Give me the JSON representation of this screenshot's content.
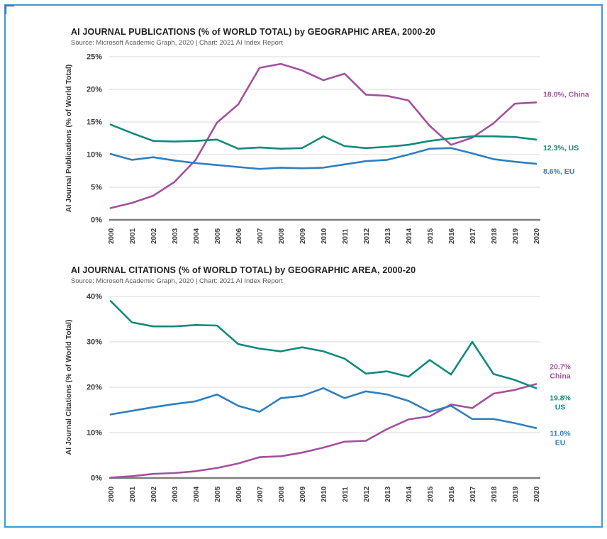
{
  "page": {
    "background": "#ffffff",
    "border_color": "#3b9ad2"
  },
  "chart_data": [
    {
      "type": "line",
      "title": "AI JOURNAL PUBLICATIONS (% of WORLD TOTAL) by GEOGRAPHIC AREA, 2000-20",
      "subtitle": "Source: Microsoft Academic Graph, 2020 | Chart: 2021 AI Index Report",
      "ylabel": "AI Journal Publications (% of World Total)",
      "xlabel": "",
      "ylim": [
        0,
        25
      ],
      "yticks": [
        0,
        5,
        10,
        15,
        20,
        25
      ],
      "ytick_labels": [
        "0%",
        "5%",
        "10%",
        "15%",
        "20%",
        "25%"
      ],
      "grid": true,
      "legend_position": "line-end-labels",
      "x": [
        2000,
        2001,
        2002,
        2003,
        2004,
        2005,
        2006,
        2007,
        2008,
        2009,
        2010,
        2011,
        2012,
        2013,
        2014,
        2015,
        2016,
        2017,
        2018,
        2019,
        2020
      ],
      "series": [
        {
          "name": "China",
          "color": "#a4509e",
          "end_label": "18.0%, China",
          "values": [
            1.8,
            2.6,
            3.7,
            5.8,
            9.2,
            14.9,
            17.7,
            23.3,
            23.9,
            22.9,
            21.4,
            22.4,
            19.2,
            19.0,
            18.3,
            14.4,
            11.5,
            12.6,
            14.8,
            17.8,
            18.0
          ]
        },
        {
          "name": "US",
          "color": "#12897e",
          "end_label": "12.3%, US",
          "values": [
            14.6,
            13.3,
            12.1,
            12.0,
            12.1,
            12.3,
            10.9,
            11.1,
            10.9,
            11.0,
            12.8,
            11.3,
            11.0,
            11.2,
            11.5,
            12.1,
            12.5,
            12.8,
            12.8,
            12.7,
            12.3
          ]
        },
        {
          "name": "EU",
          "color": "#2e7fc1",
          "end_label": "8.6%, EU",
          "values": [
            10.1,
            9.2,
            9.6,
            9.1,
            8.7,
            8.4,
            8.1,
            7.8,
            8.0,
            7.9,
            8.0,
            8.5,
            9.0,
            9.2,
            10.0,
            10.9,
            11.0,
            10.2,
            9.3,
            8.9,
            8.6
          ]
        }
      ]
    },
    {
      "type": "line",
      "title": "AI JOURNAL CITATIONS (% of WORLD TOTAL) by GEOGRAPHIC AREA, 2000-20",
      "subtitle": "Source: Microsoft Academic Graph, 2020 | Chart: 2021 AI Index Report",
      "ylabel": "AI Journal Citations (% of World Total)",
      "xlabel": "",
      "ylim": [
        0,
        40
      ],
      "yticks": [
        0,
        10,
        20,
        30,
        40
      ],
      "ytick_labels": [
        "0%",
        "10%",
        "20%",
        "30%",
        "40%"
      ],
      "grid": true,
      "legend_position": "line-end-labels",
      "x": [
        2000,
        2001,
        2002,
        2003,
        2004,
        2005,
        2006,
        2007,
        2008,
        2009,
        2010,
        2011,
        2012,
        2013,
        2014,
        2015,
        2016,
        2017,
        2018,
        2019,
        2020
      ],
      "series": [
        {
          "name": "China",
          "color": "#a4509e",
          "end_label": [
            "20.7%",
            "China"
          ],
          "values": [
            0.1,
            0.4,
            0.9,
            1.1,
            1.5,
            2.2,
            3.2,
            4.6,
            4.8,
            5.6,
            6.7,
            8.0,
            8.2,
            10.8,
            12.9,
            13.6,
            16.2,
            15.4,
            18.6,
            19.4,
            20.7
          ]
        },
        {
          "name": "US",
          "color": "#12897e",
          "end_label": [
            "19.8%",
            "US"
          ],
          "values": [
            39.0,
            34.3,
            33.4,
            33.4,
            33.7,
            33.6,
            29.5,
            28.5,
            27.9,
            28.8,
            27.9,
            26.3,
            23.0,
            23.5,
            22.3,
            26.0,
            22.8,
            30.0,
            22.9,
            21.6,
            19.8
          ]
        },
        {
          "name": "EU",
          "color": "#2e7fc1",
          "end_label": [
            "11.0%",
            "EU"
          ],
          "values": [
            14.0,
            14.8,
            15.6,
            16.3,
            16.9,
            18.4,
            15.9,
            14.6,
            17.6,
            18.1,
            19.8,
            17.6,
            19.1,
            18.4,
            17.0,
            14.6,
            15.9,
            13.0,
            13.0,
            12.1,
            11.0
          ]
        }
      ]
    }
  ]
}
